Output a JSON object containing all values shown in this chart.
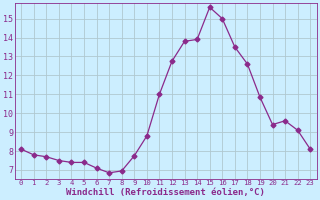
{
  "x": [
    0,
    1,
    2,
    3,
    4,
    5,
    6,
    7,
    8,
    9,
    10,
    11,
    12,
    13,
    14,
    15,
    16,
    17,
    18,
    19,
    20,
    21,
    22,
    23
  ],
  "y": [
    8.1,
    7.8,
    7.7,
    7.5,
    7.4,
    7.4,
    7.1,
    6.85,
    6.95,
    7.75,
    8.8,
    11.0,
    12.75,
    13.8,
    13.9,
    15.6,
    15.0,
    13.5,
    12.6,
    10.85,
    9.4,
    9.6,
    9.1,
    8.1
  ],
  "line_color": "#8B2A8B",
  "marker": "D",
  "marker_size": 2.5,
  "bg_color": "#cceeff",
  "grid_color": "#b0c8d0",
  "xlabel": "Windchill (Refroidissement éolien,°C)",
  "xlabel_color": "#8B2A8B",
  "tick_color": "#8B2A8B",
  "ylim": [
    6.5,
    15.8
  ],
  "xlim": [
    -0.5,
    23.5
  ],
  "yticks": [
    7,
    8,
    9,
    10,
    11,
    12,
    13,
    14,
    15
  ],
  "xticks": [
    0,
    1,
    2,
    3,
    4,
    5,
    6,
    7,
    8,
    9,
    10,
    11,
    12,
    13,
    14,
    15,
    16,
    17,
    18,
    19,
    20,
    21,
    22,
    23
  ],
  "xlabel_fontsize": 6.5,
  "xtick_fontsize": 5.2,
  "ytick_fontsize": 6.0
}
